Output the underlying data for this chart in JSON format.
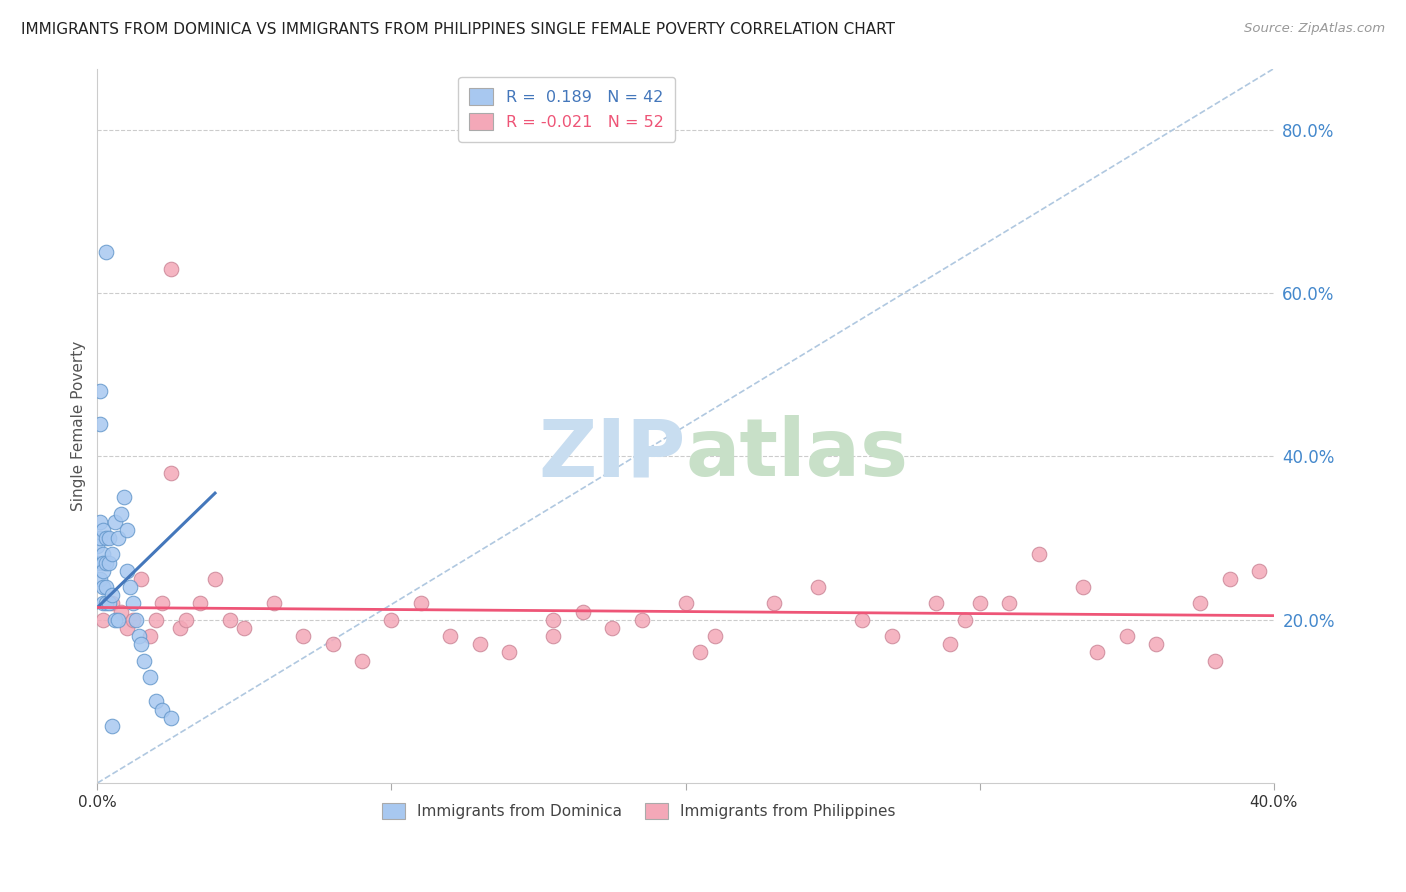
{
  "title": "IMMIGRANTS FROM DOMINICA VS IMMIGRANTS FROM PHILIPPINES SINGLE FEMALE POVERTY CORRELATION CHART",
  "source": "Source: ZipAtlas.com",
  "ylabel": "Single Female Poverty",
  "right_ytick_vals": [
    0.2,
    0.4,
    0.6,
    0.8
  ],
  "xlim": [
    0.0,
    0.4
  ],
  "ylim": [
    0.0,
    0.875
  ],
  "legend_r1": "R =  0.189   N = 42",
  "legend_r2": "R = -0.021   N = 52",
  "dominica_color": "#a8c8f0",
  "dominica_edge_color": "#6699cc",
  "philippines_color": "#f4a8b8",
  "philippines_edge_color": "#cc8899",
  "dominica_line_color": "#4477bb",
  "philippines_line_color": "#ee5577",
  "diag_line_color": "#b0c8e0",
  "dom_x": [
    0.0,
    0.0,
    0.001,
    0.001,
    0.001,
    0.001,
    0.001,
    0.002,
    0.002,
    0.002,
    0.002,
    0.002,
    0.002,
    0.003,
    0.003,
    0.003,
    0.003,
    0.004,
    0.004,
    0.004,
    0.005,
    0.005,
    0.006,
    0.006,
    0.007,
    0.007,
    0.008,
    0.009,
    0.01,
    0.01,
    0.011,
    0.012,
    0.013,
    0.014,
    0.015,
    0.016,
    0.018,
    0.02,
    0.022,
    0.025,
    0.003,
    0.005
  ],
  "dom_y": [
    0.29,
    0.27,
    0.48,
    0.44,
    0.32,
    0.3,
    0.25,
    0.31,
    0.28,
    0.27,
    0.24,
    0.26,
    0.22,
    0.3,
    0.27,
    0.22,
    0.24,
    0.3,
    0.27,
    0.22,
    0.28,
    0.23,
    0.32,
    0.2,
    0.3,
    0.2,
    0.33,
    0.35,
    0.31,
    0.26,
    0.24,
    0.22,
    0.2,
    0.18,
    0.17,
    0.15,
    0.13,
    0.1,
    0.09,
    0.08,
    0.65,
    0.07
  ],
  "phil_x": [
    0.002,
    0.005,
    0.008,
    0.01,
    0.012,
    0.015,
    0.018,
    0.02,
    0.022,
    0.025,
    0.028,
    0.03,
    0.035,
    0.04,
    0.045,
    0.05,
    0.06,
    0.07,
    0.08,
    0.09,
    0.1,
    0.11,
    0.12,
    0.13,
    0.14,
    0.155,
    0.165,
    0.175,
    0.185,
    0.2,
    0.21,
    0.23,
    0.245,
    0.26,
    0.27,
    0.285,
    0.295,
    0.31,
    0.32,
    0.335,
    0.35,
    0.36,
    0.375,
    0.385,
    0.395,
    0.025,
    0.3,
    0.155,
    0.205,
    0.29,
    0.34,
    0.38
  ],
  "phil_y": [
    0.2,
    0.22,
    0.21,
    0.19,
    0.2,
    0.25,
    0.18,
    0.2,
    0.22,
    0.63,
    0.19,
    0.2,
    0.22,
    0.25,
    0.2,
    0.19,
    0.22,
    0.18,
    0.17,
    0.15,
    0.2,
    0.22,
    0.18,
    0.17,
    0.16,
    0.18,
    0.21,
    0.19,
    0.2,
    0.22,
    0.18,
    0.22,
    0.24,
    0.2,
    0.18,
    0.22,
    0.2,
    0.22,
    0.28,
    0.24,
    0.18,
    0.17,
    0.22,
    0.25,
    0.26,
    0.38,
    0.22,
    0.2,
    0.16,
    0.17,
    0.16,
    0.15
  ],
  "dom_line_x": [
    0.0,
    0.04
  ],
  "dom_line_y": [
    0.215,
    0.355
  ],
  "phil_line_x": [
    0.0,
    0.4
  ],
  "phil_line_y": [
    0.215,
    0.205
  ],
  "diag_line_x": [
    0.0,
    0.4
  ],
  "diag_line_y": [
    0.0,
    0.875
  ]
}
